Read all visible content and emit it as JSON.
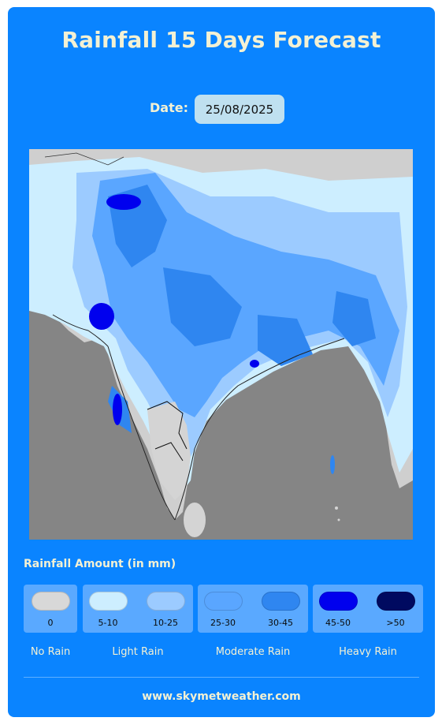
{
  "title": "Rainfall 15 Days Forecast",
  "date": {
    "label": "Date:",
    "value": "25/08/2025"
  },
  "legend": {
    "title": "Rainfall Amount (in mm)",
    "groups": [
      {
        "category": "No Rain",
        "items": [
          {
            "label": "0",
            "color": "#d8d8d8"
          }
        ]
      },
      {
        "category": "Light Rain",
        "items": [
          {
            "label": "5-10",
            "color": "#cdeeff"
          },
          {
            "label": "10-25",
            "color": "#9ccbff"
          }
        ]
      },
      {
        "category": "Moderate Rain",
        "items": [
          {
            "label": "25-30",
            "color": "#5aa6ff"
          },
          {
            "label": "30-45",
            "color": "#2f86f0"
          }
        ]
      },
      {
        "category": "Heavy Rain",
        "items": [
          {
            "label": "45-50",
            "color": "#0000ee"
          },
          {
            "label": ">50",
            "color": "#000a60"
          }
        ]
      }
    ]
  },
  "footer": "www.skymetweather.com"
}
